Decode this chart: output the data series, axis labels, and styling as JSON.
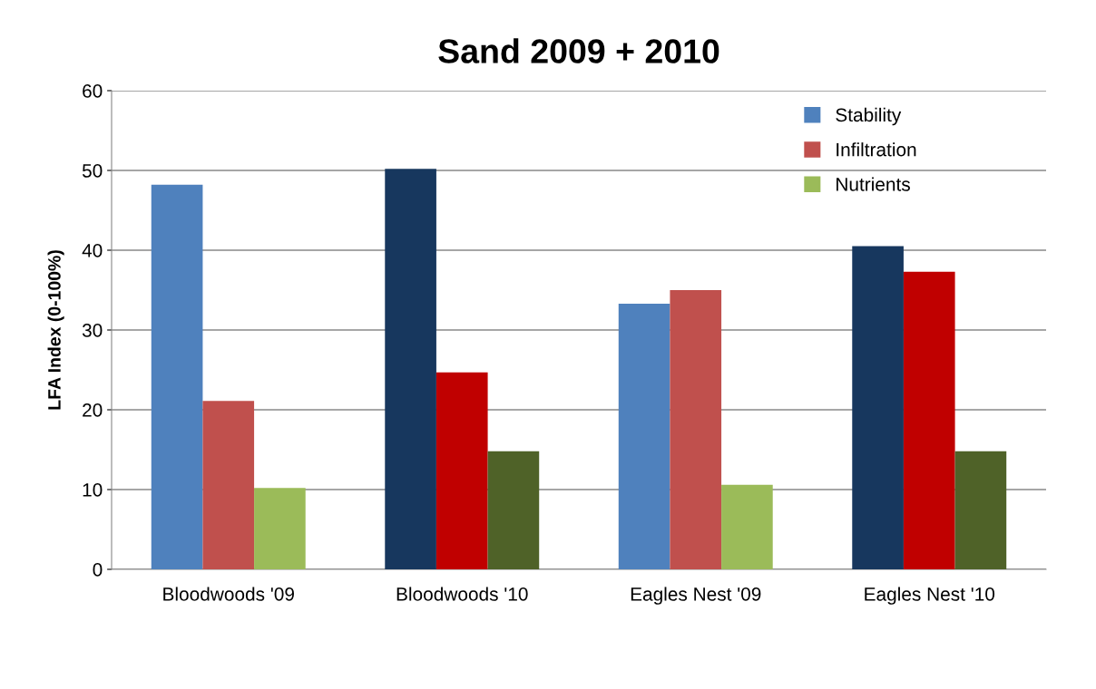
{
  "chart_data": {
    "type": "bar",
    "title": "Sand 2009 + 2010",
    "ylabel": "LFA Index (0-100%)",
    "categories": [
      "Bloodwoods '09",
      "Bloodwoods '10",
      "Eagles Nest '09",
      "Eagles Nest '10"
    ],
    "series": [
      {
        "name": "Stability",
        "color": "#4f81bd",
        "colors": [
          "#4f81bd",
          "#17375e",
          "#4f81bd",
          "#17375e"
        ],
        "values": [
          48.2,
          50.2,
          33.3,
          40.5
        ]
      },
      {
        "name": "Infiltration",
        "color": "#c0504d",
        "colors": [
          "#c0504d",
          "#c00000",
          "#c0504d",
          "#c00000"
        ],
        "values": [
          21.1,
          24.7,
          35.0,
          37.3
        ]
      },
      {
        "name": "Nutrients",
        "color": "#9bbb59",
        "colors": [
          "#9bbb59",
          "#4f6228",
          "#9bbb59",
          "#4f6228"
        ],
        "values": [
          10.2,
          14.8,
          10.6,
          14.8
        ]
      }
    ],
    "ylim": [
      0,
      60
    ],
    "yticks": [
      0,
      10,
      20,
      30,
      40,
      50,
      60
    ],
    "grid": "y",
    "legend": "top right"
  }
}
